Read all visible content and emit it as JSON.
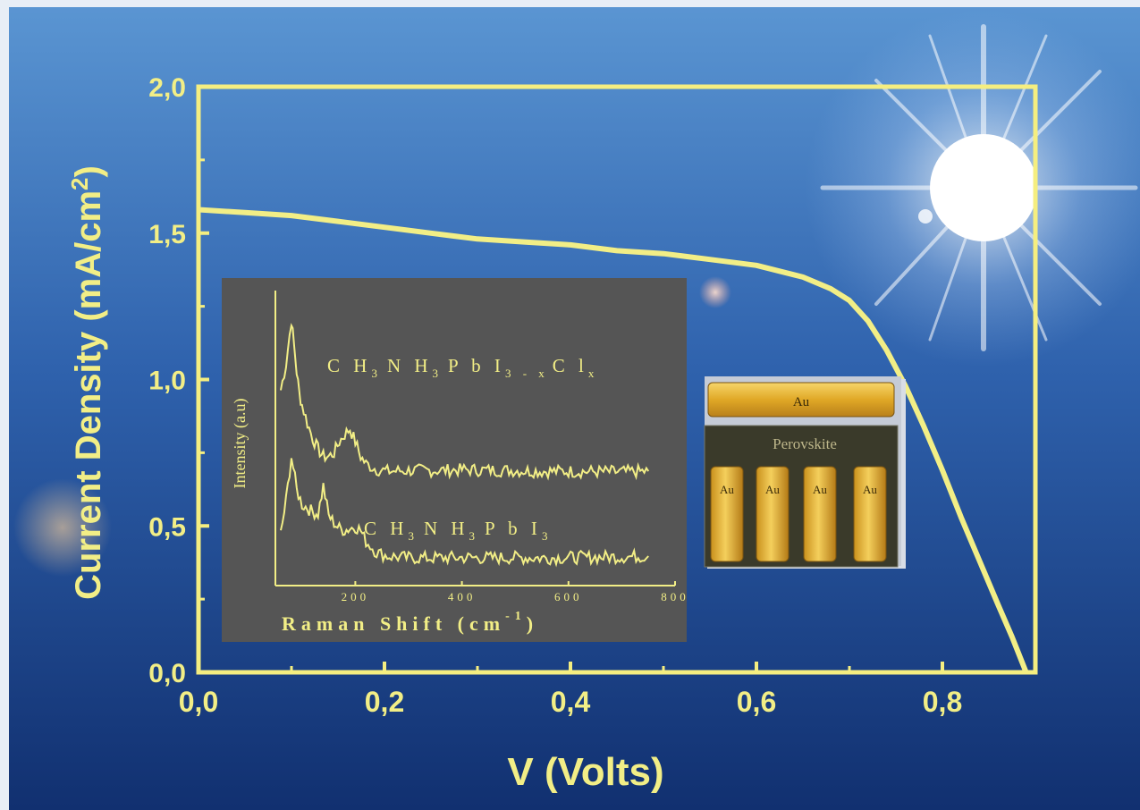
{
  "colors": {
    "curve": "#f2ee86",
    "axis": "#f5ee80",
    "bg_top": "#4a88c8",
    "bg_bottom": "#0f2f72",
    "inset_bg": "#555555",
    "gold": "#e6b22a"
  },
  "chart_data": [
    {
      "type": "line",
      "title": "",
      "xlabel": "V (Volts)",
      "ylabel": "Current Density (mA/cm²)",
      "ylabel_base": "Current Density (mA/cm",
      "ylabel_sup": "2",
      "ylabel_close": ")",
      "xlim": [
        0,
        0.9
      ],
      "ylim": [
        0,
        2.0
      ],
      "xticks": [
        "0,0",
        "0,2",
        "0,4",
        "0,6",
        "0,8"
      ],
      "xtick_values": [
        0,
        0.2,
        0.4,
        0.6,
        0.8
      ],
      "yticks": [
        "0,0",
        "0,5",
        "1,0",
        "1,5",
        "2,0"
      ],
      "ytick_values": [
        0,
        0.5,
        1.0,
        1.5,
        2.0
      ],
      "series": [
        {
          "x": [
            0,
            0.05,
            0.1,
            0.15,
            0.2,
            0.25,
            0.3,
            0.35,
            0.4,
            0.45,
            0.5,
            0.55,
            0.6,
            0.65,
            0.68,
            0.7,
            0.72,
            0.74,
            0.76,
            0.78,
            0.8,
            0.82,
            0.84,
            0.86,
            0.875,
            0.885,
            0.89
          ],
          "y": [
            1.58,
            1.57,
            1.56,
            1.54,
            1.52,
            1.5,
            1.48,
            1.47,
            1.46,
            1.44,
            1.43,
            1.41,
            1.39,
            1.35,
            1.31,
            1.27,
            1.2,
            1.1,
            0.98,
            0.84,
            0.69,
            0.53,
            0.38,
            0.23,
            0.12,
            0.04,
            0.0
          ]
        }
      ]
    },
    {
      "type": "line",
      "title": "",
      "xlabel": "Raman Shift (cm",
      "xlabel_sup": "-1",
      "xlabel_close": ")",
      "ylabel": "Intensity (a.u)",
      "xlim": [
        50,
        800
      ],
      "xticks": [
        "200",
        "400",
        "600",
        "800"
      ],
      "xtick_values": [
        200,
        400,
        600,
        800
      ],
      "series": [
        {
          "label_main": [
            "C H",
            "3",
            "N H",
            "3",
            "P b I",
            "3 - x",
            "C l",
            "x"
          ],
          "x": [
            60,
            70,
            80,
            85,
            90,
            95,
            100,
            110,
            120,
            130,
            140,
            150,
            160,
            170,
            180,
            190,
            200,
            210,
            220,
            240,
            260,
            300,
            350,
            400,
            450,
            500,
            550,
            600,
            650,
            700,
            750
          ],
          "y": [
            5.3,
            6.0,
            7.2,
            6.5,
            5.8,
            5.2,
            4.9,
            4.4,
            4.0,
            3.7,
            3.5,
            3.5,
            3.6,
            3.9,
            4.1,
            4.25,
            3.9,
            3.5,
            3.3,
            3.15,
            3.1,
            3.12,
            3.12,
            3.14,
            3.13,
            3.12,
            3.1,
            3.1,
            3.09,
            3.08,
            3.1
          ]
        },
        {
          "label_main": [
            "C H",
            "3",
            "N H",
            "3",
            "P b I",
            "3"
          ],
          "x": [
            60,
            70,
            80,
            90,
            100,
            110,
            120,
            130,
            140,
            150,
            160,
            170,
            180,
            190,
            200,
            210,
            220,
            240,
            260,
            300,
            350,
            400,
            450,
            500,
            550,
            600,
            650,
            700,
            750
          ],
          "y": [
            1.4,
            2.3,
            3.5,
            2.6,
            2.2,
            2.1,
            2.0,
            1.95,
            2.7,
            1.9,
            1.7,
            1.55,
            1.5,
            1.55,
            1.6,
            1.5,
            1.2,
            0.9,
            0.8,
            0.75,
            0.75,
            0.76,
            0.75,
            0.76,
            0.75,
            0.76,
            0.77,
            0.78,
            0.8
          ]
        }
      ]
    }
  ],
  "device": {
    "top_contact": "Au",
    "layer": "Perovskite",
    "bottom_contacts": [
      "Au",
      "Au",
      "Au",
      "Au"
    ]
  }
}
